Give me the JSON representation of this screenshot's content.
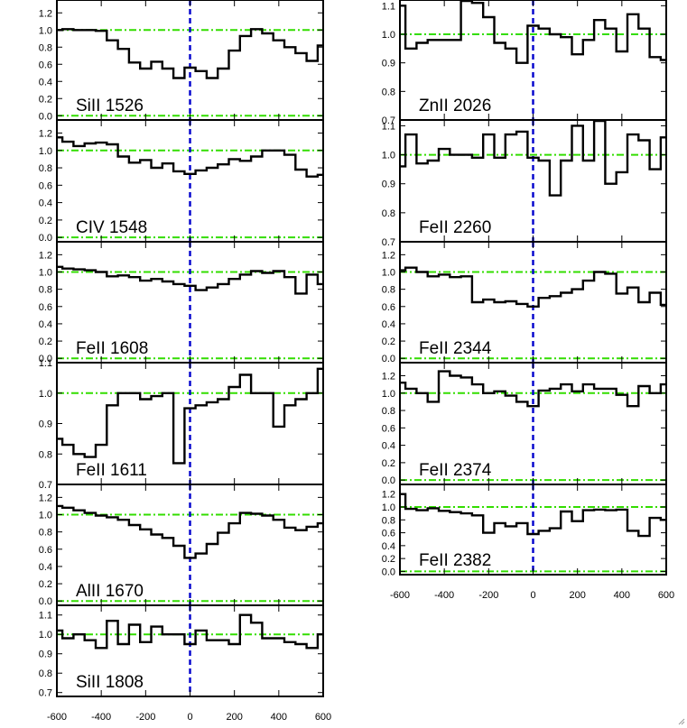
{
  "colors": {
    "reference_line": "#33dd00",
    "zero_velocity_line": "#0000cc",
    "spectrum": "#000000"
  },
  "chart_data": [
    {
      "type": "line",
      "panel": "SiII 1526",
      "label": "SiII 1526",
      "xlim": [
        -600,
        600
      ],
      "ylim": [
        -0.05,
        1.35
      ],
      "yticks": [
        0.0,
        0.2,
        0.4,
        0.6,
        0.8,
        1.0,
        1.2
      ],
      "ytick_labels": [
        "0.0",
        "0.2",
        "0.4",
        "0.6",
        "0.8",
        "1.0",
        "1.2"
      ],
      "xticks": [
        -600,
        -400,
        -200,
        0,
        200,
        400,
        600
      ],
      "xtick_labels": [],
      "reference_levels": [
        1.0,
        0.0
      ],
      "x": [
        -600,
        -550,
        -500,
        -450,
        -400,
        -350,
        -300,
        -250,
        -200,
        -150,
        -100,
        -50,
        0,
        50,
        100,
        150,
        200,
        250,
        300,
        350,
        400,
        450,
        500,
        550,
        600
      ],
      "y": [
        1.0,
        1.01,
        1.0,
        1.0,
        0.99,
        0.88,
        0.78,
        0.62,
        0.55,
        0.63,
        0.55,
        0.44,
        0.56,
        0.52,
        0.44,
        0.55,
        0.76,
        0.93,
        1.01,
        0.96,
        0.88,
        0.8,
        0.73,
        0.64,
        0.82
      ]
    },
    {
      "type": "line",
      "panel": "CIV 1548",
      "label": "CIV 1548",
      "xlim": [
        -600,
        600
      ],
      "ylim": [
        -0.05,
        1.35
      ],
      "yticks": [
        0.0,
        0.2,
        0.4,
        0.6,
        0.8,
        1.0,
        1.2
      ],
      "ytick_labels": [
        "0.0",
        "0.2",
        "0.4",
        "0.6",
        "0.8",
        "1.0",
        "1.2"
      ],
      "xticks": [
        -600,
        -400,
        -200,
        0,
        200,
        400,
        600
      ],
      "xtick_labels": [],
      "reference_levels": [
        1.0,
        0.0
      ],
      "x": [
        -600,
        -550,
        -500,
        -450,
        -400,
        -350,
        -300,
        -250,
        -200,
        -150,
        -100,
        -50,
        0,
        50,
        100,
        150,
        200,
        250,
        300,
        350,
        400,
        450,
        500,
        550,
        600
      ],
      "y": [
        1.15,
        1.1,
        1.05,
        1.08,
        1.09,
        1.07,
        0.93,
        0.86,
        0.89,
        0.8,
        0.85,
        0.76,
        0.73,
        0.77,
        0.8,
        0.84,
        0.9,
        0.88,
        0.93,
        1.0,
        1.0,
        0.95,
        0.78,
        0.7,
        0.72
      ]
    },
    {
      "type": "line",
      "panel": "FeII 1608",
      "label": "FeII 1608",
      "xlim": [
        -600,
        600
      ],
      "ylim": [
        -0.05,
        1.35
      ],
      "yticks": [
        0.0,
        0.2,
        0.4,
        0.6,
        0.8,
        1.0,
        1.2
      ],
      "ytick_labels": [
        "0.0",
        "0.2",
        "0.4",
        "0.6",
        "0.8",
        "1.0",
        "1.2"
      ],
      "xticks": [
        -600,
        -400,
        -200,
        0,
        200,
        400,
        600
      ],
      "xtick_labels": [],
      "reference_levels": [
        1.0,
        0.0
      ],
      "x": [
        -600,
        -550,
        -500,
        -450,
        -400,
        -350,
        -300,
        -250,
        -200,
        -150,
        -100,
        -50,
        0,
        50,
        100,
        150,
        200,
        250,
        300,
        350,
        400,
        450,
        500,
        550,
        600
      ],
      "y": [
        1.06,
        1.04,
        1.03,
        1.02,
        1.0,
        0.95,
        0.96,
        0.94,
        0.9,
        0.92,
        0.89,
        0.86,
        0.84,
        0.79,
        0.82,
        0.86,
        0.92,
        0.97,
        1.01,
        0.99,
        1.01,
        0.94,
        0.75,
        0.97,
        0.86
      ]
    },
    {
      "type": "line",
      "panel": "FeII 1611",
      "label": "FeII 1611",
      "xlim": [
        -600,
        600
      ],
      "ylim": [
        0.7,
        1.1
      ],
      "yticks": [
        0.7,
        0.8,
        0.9,
        1.0,
        1.1
      ],
      "ytick_labels": [
        "0.7",
        "0.8",
        "0.9",
        "1.0",
        "1.1"
      ],
      "xticks": [
        -600,
        -400,
        -200,
        0,
        200,
        400,
        600
      ],
      "xtick_labels": [],
      "reference_levels": [
        1.0
      ],
      "x": [
        -600,
        -550,
        -500,
        -450,
        -400,
        -350,
        -300,
        -250,
        -200,
        -150,
        -100,
        -50,
        0,
        50,
        100,
        150,
        200,
        250,
        300,
        350,
        400,
        450,
        500,
        550,
        600
      ],
      "y": [
        0.85,
        0.83,
        0.8,
        0.79,
        0.83,
        0.96,
        1.0,
        1.0,
        0.98,
        0.99,
        1.0,
        0.77,
        0.95,
        0.96,
        0.97,
        0.98,
        1.02,
        1.06,
        1.0,
        1.0,
        0.89,
        0.96,
        0.98,
        1.0,
        1.08
      ]
    },
    {
      "type": "line",
      "panel": "AlII 1670",
      "label": "AlII 1670",
      "xlim": [
        -600,
        600
      ],
      "ylim": [
        -0.05,
        1.35
      ],
      "yticks": [
        0.0,
        0.2,
        0.4,
        0.6,
        0.8,
        1.0,
        1.2
      ],
      "ytick_labels": [
        "0.0",
        "0.2",
        "0.4",
        "0.6",
        "0.8",
        "1.0",
        "1.2"
      ],
      "xticks": [
        -600,
        -400,
        -200,
        0,
        200,
        400,
        600
      ],
      "xtick_labels": [],
      "reference_levels": [
        1.0,
        0.0
      ],
      "x": [
        -600,
        -550,
        -500,
        -450,
        -400,
        -350,
        -300,
        -250,
        -200,
        -150,
        -100,
        -50,
        0,
        50,
        100,
        150,
        200,
        250,
        300,
        350,
        400,
        450,
        500,
        550,
        600
      ],
      "y": [
        1.1,
        1.08,
        1.05,
        1.02,
        0.99,
        0.97,
        0.94,
        0.88,
        0.83,
        0.77,
        0.73,
        0.64,
        0.5,
        0.55,
        0.66,
        0.79,
        0.9,
        1.02,
        1.01,
        0.99,
        0.94,
        0.85,
        0.82,
        0.86,
        0.9
      ]
    },
    {
      "type": "line",
      "panel": "SiII 1808",
      "label": "SiII 1808",
      "xlim": [
        -600,
        600
      ],
      "ylim": [
        0.68,
        1.15
      ],
      "yticks": [
        0.7,
        0.8,
        0.9,
        1.0,
        1.1
      ],
      "ytick_labels": [
        "0.7",
        "0.8",
        "0.9",
        "1.0",
        "1.1"
      ],
      "xticks": [
        -600,
        -400,
        -200,
        0,
        200,
        400,
        600
      ],
      "xtick_labels": [
        "-600",
        "-400",
        "-200",
        "0",
        "200",
        "400",
        "600"
      ],
      "reference_levels": [
        1.0
      ],
      "x": [
        -600,
        -550,
        -500,
        -450,
        -400,
        -350,
        -300,
        -250,
        -200,
        -150,
        -100,
        -50,
        0,
        50,
        100,
        150,
        200,
        250,
        300,
        350,
        400,
        450,
        500,
        550,
        600
      ],
      "y": [
        1.02,
        0.98,
        1.0,
        0.97,
        0.93,
        1.07,
        0.95,
        1.05,
        0.96,
        1.04,
        1.0,
        1.0,
        0.95,
        1.02,
        0.97,
        0.97,
        0.95,
        1.1,
        1.06,
        0.98,
        0.98,
        0.96,
        0.95,
        0.93,
        1.0
      ]
    },
    {
      "type": "line",
      "panel": "ZnII 2026",
      "label": "ZnII 2026",
      "xlim": [
        -600,
        600
      ],
      "ylim": [
        0.7,
        1.12
      ],
      "yticks": [
        0.7,
        0.8,
        0.9,
        1.0,
        1.1
      ],
      "ytick_labels": [
        "0.7",
        "0.8",
        "0.9",
        "1.0",
        "1.1"
      ],
      "xticks": [
        -600,
        -400,
        -200,
        0,
        200,
        400,
        600
      ],
      "xtick_labels": [],
      "reference_levels": [
        1.0
      ],
      "x": [
        -600,
        -550,
        -500,
        -450,
        -400,
        -350,
        -300,
        -250,
        -200,
        -150,
        -100,
        -50,
        0,
        50,
        100,
        150,
        200,
        250,
        300,
        350,
        400,
        450,
        500,
        550,
        600
      ],
      "y": [
        1.1,
        0.95,
        0.97,
        0.98,
        0.98,
        0.98,
        1.15,
        1.11,
        1.06,
        0.97,
        0.95,
        0.9,
        1.03,
        1.02,
        1.0,
        0.99,
        0.93,
        0.98,
        1.05,
        1.02,
        0.94,
        1.07,
        1.02,
        0.92,
        0.91
      ]
    },
    {
      "type": "line",
      "panel": "FeII 2260",
      "label": "FeII 2260",
      "xlim": [
        -600,
        600
      ],
      "ylim": [
        0.7,
        1.12
      ],
      "yticks": [
        0.7,
        0.8,
        0.9,
        1.0,
        1.1
      ],
      "ytick_labels": [
        "0.7",
        "0.8",
        "0.9",
        "1.0",
        "1.1"
      ],
      "xticks": [
        -600,
        -400,
        -200,
        0,
        200,
        400,
        600
      ],
      "xtick_labels": [],
      "reference_levels": [
        1.0
      ],
      "x": [
        -600,
        -550,
        -500,
        -450,
        -400,
        -350,
        -300,
        -250,
        -200,
        -150,
        -100,
        -50,
        0,
        50,
        100,
        150,
        200,
        250,
        300,
        350,
        400,
        450,
        500,
        550,
        600
      ],
      "y": [
        0.96,
        1.07,
        0.97,
        0.98,
        1.02,
        1.0,
        1.0,
        0.99,
        1.07,
        0.99,
        1.07,
        1.08,
        0.99,
        0.98,
        0.86,
        0.98,
        1.1,
        0.98,
        1.15,
        0.9,
        0.94,
        1.07,
        1.05,
        0.95,
        1.06
      ]
    },
    {
      "type": "line",
      "panel": "FeII 2344",
      "label": "FeII 2344",
      "xlim": [
        -600,
        600
      ],
      "ylim": [
        -0.05,
        1.35
      ],
      "yticks": [
        0.0,
        0.2,
        0.4,
        0.6,
        0.8,
        1.0,
        1.2
      ],
      "ytick_labels": [
        "0.0",
        "0.2",
        "0.4",
        "0.6",
        "0.8",
        "1.0",
        "1.2"
      ],
      "xticks": [
        -600,
        -400,
        -200,
        0,
        200,
        400,
        600
      ],
      "xtick_labels": [],
      "reference_levels": [
        1.0,
        0.0
      ],
      "x": [
        -600,
        -550,
        -500,
        -450,
        -400,
        -350,
        -300,
        -250,
        -200,
        -150,
        -100,
        -50,
        0,
        50,
        100,
        150,
        200,
        250,
        300,
        350,
        400,
        450,
        500,
        550,
        600
      ],
      "y": [
        1.02,
        1.05,
        1.0,
        0.95,
        0.97,
        0.94,
        0.95,
        0.65,
        0.68,
        0.65,
        0.66,
        0.63,
        0.6,
        0.7,
        0.72,
        0.76,
        0.8,
        0.9,
        1.0,
        0.98,
        0.75,
        0.82,
        0.65,
        0.76,
        0.62
      ]
    },
    {
      "type": "line",
      "panel": "FeII 2374",
      "label": "FeII 2374",
      "xlim": [
        -600,
        600
      ],
      "ylim": [
        -0.05,
        1.35
      ],
      "yticks": [
        0.0,
        0.2,
        0.4,
        0.6,
        0.8,
        1.0,
        1.2
      ],
      "ytick_labels": [
        "0.0",
        "0.2",
        "0.4",
        "0.6",
        "0.8",
        "1.0",
        "1.2"
      ],
      "xticks": [
        -600,
        -400,
        -200,
        0,
        200,
        400,
        600
      ],
      "xtick_labels": [],
      "reference_levels": [
        1.0,
        0.0
      ],
      "x": [
        -600,
        -550,
        -500,
        -450,
        -400,
        -350,
        -300,
        -250,
        -200,
        -150,
        -100,
        -50,
        0,
        50,
        100,
        150,
        200,
        250,
        300,
        350,
        400,
        450,
        500,
        550,
        600
      ],
      "y": [
        1.12,
        1.05,
        1.0,
        0.9,
        1.25,
        1.2,
        1.18,
        1.1,
        1.0,
        1.02,
        0.97,
        0.9,
        0.85,
        1.03,
        1.05,
        1.1,
        1.02,
        1.1,
        1.05,
        1.05,
        0.98,
        0.85,
        1.08,
        1.0,
        1.1
      ]
    },
    {
      "type": "line",
      "panel": "FeII 2382",
      "label": "FeII 2382",
      "xlim": [
        -600,
        600
      ],
      "ylim": [
        -0.05,
        1.35
      ],
      "yticks": [
        0.0,
        0.2,
        0.4,
        0.6,
        0.8,
        1.0,
        1.2
      ],
      "ytick_labels": [
        "0.0",
        "0.2",
        "0.4",
        "0.6",
        "0.8",
        "1.0",
        "1.2"
      ],
      "xticks": [
        -600,
        -400,
        -200,
        0,
        200,
        400,
        600
      ],
      "xtick_labels": [
        "-600",
        "-400",
        "-200",
        "0",
        "200",
        "400",
        "600"
      ],
      "reference_levels": [
        1.0,
        0.0
      ],
      "x": [
        -600,
        -550,
        -500,
        -450,
        -400,
        -350,
        -300,
        -250,
        -200,
        -150,
        -100,
        -50,
        0,
        50,
        100,
        150,
        200,
        250,
        300,
        350,
        400,
        450,
        500,
        550,
        600
      ],
      "y": [
        1.2,
        0.97,
        0.95,
        0.98,
        0.94,
        0.92,
        0.9,
        0.87,
        0.6,
        0.75,
        0.7,
        0.75,
        0.58,
        0.63,
        0.67,
        0.93,
        0.78,
        0.95,
        0.96,
        0.95,
        0.96,
        0.63,
        0.55,
        0.83,
        0.8
      ]
    }
  ]
}
